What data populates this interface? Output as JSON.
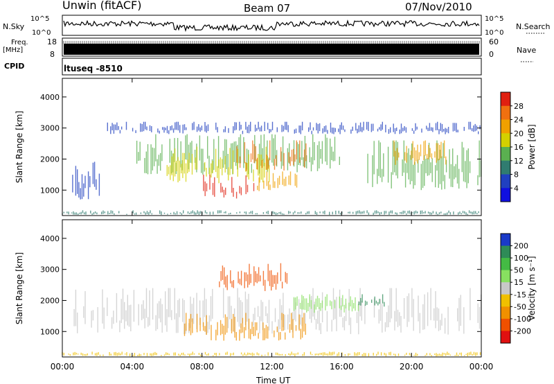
{
  "header": {
    "station": "Unwin (fitACF)",
    "beam": "Beam 07",
    "date": "07/Nov/2010"
  },
  "status_panels": {
    "nsky_label": "N.Sky",
    "nsky_tick_top": "10^5",
    "nsky_tick_bottom": "10^0",
    "nsearch_label": "N.Search",
    "freq_label": "Freq.",
    "freq_unit": "[MHz]",
    "freq_tick_top": "18",
    "freq_tick_bottom": "8",
    "nave_tick_top": "60",
    "nave_tick_bottom": "0",
    "nave_label": "Nave",
    "cpid_label": "CPID",
    "cpid_value": "ltuseq -8510"
  },
  "chart_data": [
    {
      "type": "heatmap",
      "panel": "power",
      "ylabel": "Slant Range [km]",
      "xlabel": "",
      "x_ticks": [
        "00:00",
        "04:00",
        "08:00",
        "12:00",
        "16:00",
        "20:00",
        "00:00"
      ],
      "xlim": [
        0,
        24
      ],
      "y_ticks": [
        1000,
        2000,
        3000,
        4000
      ],
      "ylim": [
        180,
        4600
      ],
      "colorbar": {
        "label": "Power [dB]",
        "ticks": [
          4,
          8,
          12,
          16,
          20,
          24,
          28
        ],
        "colors": [
          "#1010e0",
          "#2040c0",
          "#307c70",
          "#5ab050",
          "#d4d000",
          "#f0a000",
          "#f07010",
          "#e02010"
        ]
      },
      "regions": [
        {
          "t": [
            0.5,
            2.3
          ],
          "r": [
            700,
            2000
          ],
          "v": 6
        },
        {
          "t": [
            2.5,
            24
          ],
          "r": [
            2800,
            3200
          ],
          "v": 4
        },
        {
          "t": [
            4,
            16
          ],
          "r": [
            1500,
            2800
          ],
          "v": 13
        },
        {
          "t": [
            6,
            12
          ],
          "r": [
            1200,
            2400
          ],
          "v": 18
        },
        {
          "t": [
            8,
            11
          ],
          "r": [
            700,
            1500
          ],
          "v": 28
        },
        {
          "t": [
            10,
            14
          ],
          "r": [
            1600,
            2600
          ],
          "v": 24
        },
        {
          "t": [
            11,
            13.5
          ],
          "r": [
            900,
            1600
          ],
          "v": 22
        },
        {
          "t": [
            17.5,
            24
          ],
          "r": [
            1000,
            2600
          ],
          "v": 14
        },
        {
          "t": [
            19,
            22
          ],
          "r": [
            1800,
            2600
          ],
          "v": 20
        },
        {
          "t": [
            0,
            24
          ],
          "r": [
            200,
            350
          ],
          "v": 8
        }
      ]
    },
    {
      "type": "heatmap",
      "panel": "velocity",
      "ylabel": "Slant Range [km]",
      "xlabel": "Time UT",
      "x_ticks": [
        "00:00",
        "04:00",
        "08:00",
        "12:00",
        "16:00",
        "20:00",
        "00:00"
      ],
      "xlim": [
        0,
        24
      ],
      "y_ticks": [
        1000,
        2000,
        3000,
        4000
      ],
      "ylim": [
        180,
        4600
      ],
      "colorbar": {
        "label": "Velocity [m s⁻¹]",
        "ticks": [
          200,
          100,
          50,
          15,
          -15,
          -50,
          -100,
          -200
        ],
        "colors": [
          "#1a3ac8",
          "#2e8b57",
          "#44bb44",
          "#88e060",
          "#c8c8c8",
          "#f0c000",
          "#f09000",
          "#f05000",
          "#e01010"
        ]
      },
      "regions": [
        {
          "t": [
            0.5,
            24
          ],
          "r": [
            900,
            2400
          ],
          "v": 0
        },
        {
          "t": [
            7,
            14
          ],
          "r": [
            700,
            1600
          ],
          "v": -60
        },
        {
          "t": [
            9,
            13
          ],
          "r": [
            2300,
            3200
          ],
          "v": -200
        },
        {
          "t": [
            13,
            17
          ],
          "r": [
            1600,
            2200
          ],
          "v": 30
        },
        {
          "t": [
            17,
            18.5
          ],
          "r": [
            1800,
            2200
          ],
          "v": 120
        },
        {
          "t": [
            0,
            24
          ],
          "r": [
            200,
            350
          ],
          "v": -30
        }
      ]
    }
  ]
}
